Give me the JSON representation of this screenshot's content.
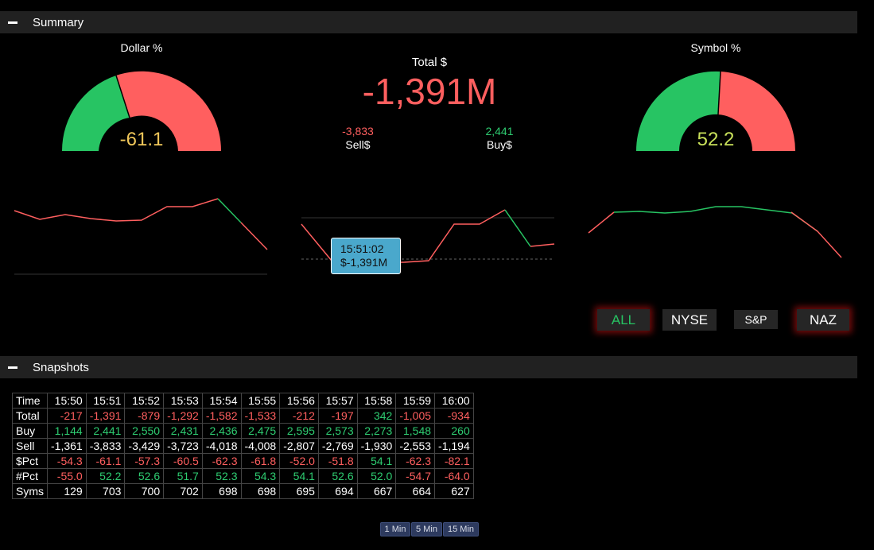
{
  "summary": {
    "title": "Summary"
  },
  "dollar_gauge": {
    "title": "Dollar %",
    "value": "-61.1",
    "color": "#f0c75a"
  },
  "symbol_gauge": {
    "title": "Symbol %",
    "value": "52.2",
    "color": "#c8e05a"
  },
  "total": {
    "label": "Total $",
    "value": "-1,391M",
    "sell_value": "-3,833",
    "sell_label": "Sell$",
    "buy_value": "2,441",
    "buy_label": "Buy$"
  },
  "tooltip": {
    "time": "15:51:02",
    "value": "$-1,391M"
  },
  "market_buttons": {
    "all": "ALL",
    "nyse": "NYSE",
    "sp": "S&P",
    "naz": "NAZ"
  },
  "snapshots": {
    "title": "Snapshots",
    "header": [
      "Time",
      "15:50",
      "15:51",
      "15:52",
      "15:53",
      "15:54",
      "15:55",
      "15:56",
      "15:57",
      "15:58",
      "15:59",
      "16:00"
    ],
    "rows": [
      {
        "label": "Total",
        "values": [
          "-217",
          "-1,391",
          "-879",
          "-1,292",
          "-1,582",
          "-1,533",
          "-212",
          "-197",
          "342",
          "-1,005",
          "-934"
        ]
      },
      {
        "label": "Buy",
        "values": [
          "1,144",
          "2,441",
          "2,550",
          "2,431",
          "2,436",
          "2,475",
          "2,595",
          "2,573",
          "2,273",
          "1,548",
          "260"
        ]
      },
      {
        "label": "Sell",
        "values": [
          "-1,361",
          "-3,833",
          "-3,429",
          "-3,723",
          "-4,018",
          "-4,008",
          "-2,807",
          "-2,769",
          "-1,930",
          "-2,553",
          "-1,194"
        ]
      },
      {
        "label": "$Pct",
        "values": [
          "-54.3",
          "-61.1",
          "-57.3",
          "-60.5",
          "-62.3",
          "-61.8",
          "-52.0",
          "-51.8",
          "54.1",
          "-62.3",
          "-82.1"
        ]
      },
      {
        "label": "#Pct",
        "values": [
          "-55.0",
          "52.2",
          "52.6",
          "51.7",
          "52.3",
          "54.3",
          "54.1",
          "52.6",
          "52.0",
          "-54.7",
          "-64.0"
        ]
      },
      {
        "label": "Syms",
        "values": [
          "129",
          "703",
          "700",
          "702",
          "698",
          "698",
          "695",
          "694",
          "667",
          "664",
          "627"
        ]
      }
    ]
  },
  "timeframes": [
    "1 Min",
    "5 Min",
    "15 Min"
  ],
  "colors": {
    "positive": "#2ecc71",
    "negative": "#ff5f5f",
    "neutral": "#ffffff"
  }
}
